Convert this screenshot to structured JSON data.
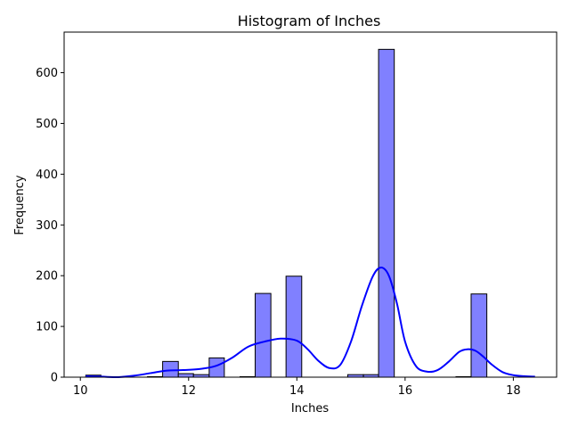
{
  "chart_data": {
    "type": "bar",
    "subtype": "histogram-with-kde",
    "title": "Histogram of Inches",
    "xlabel": "Inches",
    "ylabel": "Frequency",
    "xlim": [
      9.7,
      18.8
    ],
    "ylim": [
      0,
      680
    ],
    "x_ticks": [
      10,
      12,
      14,
      16,
      18
    ],
    "y_ticks": [
      0,
      100,
      200,
      300,
      400,
      500,
      600
    ],
    "grid": false,
    "bar_color": "#8080FF",
    "bar_edge_color": "#000000",
    "kde_color": "#0000FF",
    "bins": [
      {
        "x0": 10.1,
        "x1": 10.38,
        "count": 4
      },
      {
        "x0": 10.38,
        "x1": 10.67,
        "count": 0
      },
      {
        "x0": 10.67,
        "x1": 10.95,
        "count": 0
      },
      {
        "x0": 10.95,
        "x1": 11.24,
        "count": 0
      },
      {
        "x0": 11.24,
        "x1": 11.52,
        "count": 1
      },
      {
        "x0": 11.52,
        "x1": 11.81,
        "count": 31
      },
      {
        "x0": 11.81,
        "x1": 12.09,
        "count": 7
      },
      {
        "x0": 12.09,
        "x1": 12.38,
        "count": 5
      },
      {
        "x0": 12.38,
        "x1": 12.66,
        "count": 38
      },
      {
        "x0": 12.66,
        "x1": 12.95,
        "count": 0
      },
      {
        "x0": 12.95,
        "x1": 13.23,
        "count": 1
      },
      {
        "x0": 13.23,
        "x1": 13.52,
        "count": 165
      },
      {
        "x0": 13.52,
        "x1": 13.8,
        "count": 0
      },
      {
        "x0": 13.8,
        "x1": 14.09,
        "count": 199
      },
      {
        "x0": 14.09,
        "x1": 14.37,
        "count": 0
      },
      {
        "x0": 14.37,
        "x1": 14.66,
        "count": 0
      },
      {
        "x0": 14.66,
        "x1": 14.94,
        "count": 0
      },
      {
        "x0": 14.94,
        "x1": 15.23,
        "count": 5
      },
      {
        "x0": 15.23,
        "x1": 15.51,
        "count": 5
      },
      {
        "x0": 15.51,
        "x1": 15.8,
        "count": 646
      },
      {
        "x0": 15.8,
        "x1": 16.08,
        "count": 0
      },
      {
        "x0": 16.08,
        "x1": 16.37,
        "count": 0
      },
      {
        "x0": 16.37,
        "x1": 16.65,
        "count": 0
      },
      {
        "x0": 16.65,
        "x1": 16.94,
        "count": 0
      },
      {
        "x0": 16.94,
        "x1": 17.22,
        "count": 1
      },
      {
        "x0": 17.22,
        "x1": 17.51,
        "count": 164
      },
      {
        "x0": 17.51,
        "x1": 17.79,
        "count": 0
      },
      {
        "x0": 17.79,
        "x1": 18.08,
        "count": 0
      },
      {
        "x0": 18.08,
        "x1": 18.4,
        "count": 0
      }
    ],
    "kde": {
      "x": [
        10.1,
        10.4,
        10.7,
        11.0,
        11.3,
        11.6,
        11.9,
        12.2,
        12.5,
        12.8,
        13.1,
        13.4,
        13.7,
        14.0,
        14.2,
        14.4,
        14.6,
        14.8,
        15.0,
        15.2,
        15.4,
        15.55,
        15.7,
        15.85,
        16.0,
        16.2,
        16.4,
        16.6,
        16.8,
        17.0,
        17.15,
        17.3,
        17.45,
        17.6,
        17.8,
        18.0,
        18.2,
        18.4
      ],
      "y": [
        2,
        1,
        0,
        3,
        8,
        13,
        14,
        16,
        22,
        38,
        60,
        70,
        76,
        72,
        55,
        32,
        18,
        24,
        70,
        140,
        198,
        216,
        200,
        145,
        70,
        22,
        11,
        14,
        30,
        50,
        55,
        52,
        40,
        25,
        10,
        4,
        2,
        1
      ]
    }
  }
}
